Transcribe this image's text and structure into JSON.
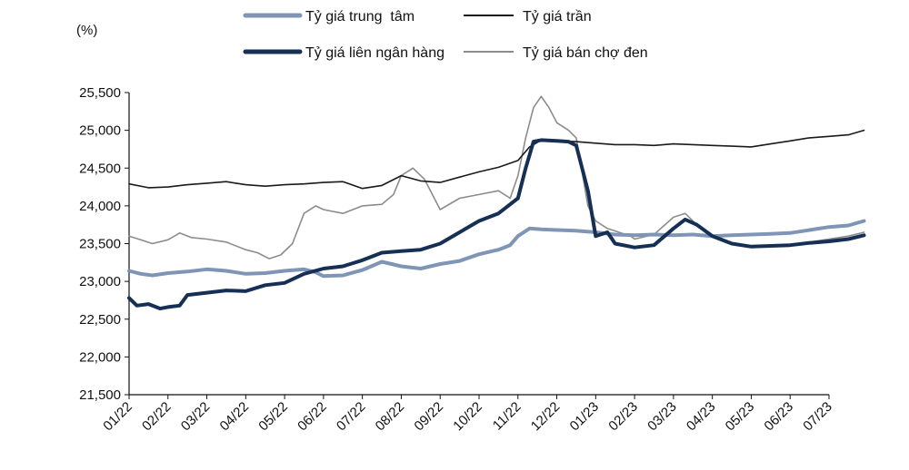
{
  "chart_data": {
    "type": "line",
    "y_unit": "(%)",
    "ylim": [
      21500,
      25500
    ],
    "y_ticks": [
      "21,500",
      "22,000",
      "22,500",
      "23,000",
      "23,500",
      "24,000",
      "24,500",
      "25,000",
      "25,500"
    ],
    "x_labels": [
      "01/22",
      "02/22",
      "03/22",
      "04/22",
      "05/22",
      "06/22",
      "07/22",
      "08/22",
      "09/22",
      "10/22",
      "11/22",
      "12/22",
      "01/23",
      "02/23",
      "03/23",
      "04/23",
      "05/23",
      "06/23",
      "07/23"
    ],
    "grid": false,
    "legend_position": "top",
    "series": [
      {
        "name": "Tỷ giá trung  tâm",
        "color": "#7f95b5",
        "x": [
          0,
          0.3,
          0.6,
          1,
          1.5,
          2,
          2.5,
          3,
          3.5,
          4,
          4.5,
          4.8,
          5,
          5.5,
          6,
          6.5,
          7,
          7.5,
          8,
          8.5,
          9,
          9.5,
          9.8,
          10,
          10.3,
          10.6,
          11,
          11.5,
          12,
          12.5,
          13,
          13.5,
          14,
          14.5,
          15,
          15.5,
          16,
          16.5,
          17,
          17.5,
          18,
          18.5,
          18.9
        ],
        "values": [
          23140,
          23100,
          23080,
          23110,
          23130,
          23160,
          23140,
          23100,
          23110,
          23140,
          23160,
          23120,
          23070,
          23080,
          23150,
          23260,
          23200,
          23170,
          23230,
          23270,
          23360,
          23420,
          23480,
          23600,
          23700,
          23690,
          23680,
          23670,
          23650,
          23620,
          23610,
          23620,
          23610,
          23620,
          23600,
          23610,
          23620,
          23630,
          23640,
          23680,
          23720,
          23740,
          23800
        ]
      },
      {
        "name": "Tỷ giá trần",
        "color": "#1a1a1a",
        "x": [
          0,
          0.5,
          1,
          1.5,
          2,
          2.5,
          3,
          3.5,
          4,
          4.5,
          5,
          5.5,
          6,
          6.5,
          7,
          7.5,
          8,
          8.5,
          9,
          9.5,
          10,
          10.3,
          10.6,
          11,
          11.5,
          12,
          12.5,
          13,
          13.5,
          14,
          14.5,
          15,
          15.5,
          16,
          16.5,
          17,
          17.5,
          18,
          18.5,
          18.9
        ],
        "values": [
          24290,
          24240,
          24250,
          24280,
          24300,
          24320,
          24280,
          24260,
          24280,
          24290,
          24310,
          24320,
          24230,
          24270,
          24400,
          24330,
          24310,
          24380,
          24450,
          24510,
          24600,
          24780,
          24870,
          24860,
          24850,
          24830,
          24810,
          24810,
          24800,
          24820,
          24810,
          24800,
          24790,
          24780,
          24820,
          24860,
          24900,
          24920,
          24940,
          25000
        ]
      },
      {
        "name": "Tỷ giá liên ngân hàng",
        "color": "#152f55",
        "x": [
          0,
          0.2,
          0.5,
          0.8,
          1,
          1.3,
          1.5,
          2,
          2.5,
          3,
          3.5,
          4,
          4.5,
          5,
          5.5,
          6,
          6.5,
          7,
          7.5,
          8,
          8.5,
          9,
          9.5,
          10,
          10.2,
          10.4,
          10.6,
          11,
          11.3,
          11.5,
          11.8,
          12,
          12.3,
          12.5,
          13,
          13.5,
          14,
          14.3,
          14.6,
          15,
          15.5,
          16,
          16.5,
          17,
          17.5,
          18,
          18.5,
          18.9
        ],
        "values": [
          22780,
          22680,
          22700,
          22640,
          22660,
          22680,
          22820,
          22850,
          22880,
          22870,
          22950,
          22980,
          23100,
          23170,
          23200,
          23280,
          23380,
          23400,
          23420,
          23500,
          23650,
          23800,
          23900,
          24100,
          24500,
          24850,
          24870,
          24860,
          24850,
          24800,
          24200,
          23600,
          23650,
          23500,
          23450,
          23480,
          23700,
          23820,
          23750,
          23600,
          23500,
          23460,
          23470,
          23480,
          23510,
          23530,
          23560,
          23610
        ]
      },
      {
        "name": "Tỷ giá bán chợ đen",
        "color": "#8c8c8c",
        "x": [
          0,
          0.3,
          0.6,
          1,
          1.3,
          1.6,
          2,
          2.5,
          3,
          3.3,
          3.6,
          3.9,
          4.2,
          4.5,
          4.8,
          5,
          5.5,
          6,
          6.5,
          6.8,
          7,
          7.3,
          7.6,
          8,
          8.5,
          9,
          9.5,
          9.8,
          10,
          10.2,
          10.4,
          10.6,
          10.8,
          11,
          11.3,
          11.5,
          11.8,
          12,
          12.3,
          12.6,
          12.9,
          13,
          13.5,
          14,
          14.3,
          14.6,
          15,
          15.5,
          16,
          16.5,
          17,
          17.5,
          18,
          18.5,
          18.9
        ],
        "values": [
          23600,
          23550,
          23500,
          23550,
          23640,
          23580,
          23560,
          23520,
          23420,
          23380,
          23300,
          23350,
          23500,
          23900,
          24000,
          23950,
          23900,
          24000,
          24020,
          24150,
          24400,
          24500,
          24350,
          23950,
          24100,
          24150,
          24200,
          24100,
          24400,
          24900,
          25300,
          25450,
          25300,
          25100,
          25000,
          24900,
          24000,
          23800,
          23700,
          23650,
          23600,
          23560,
          23620,
          23850,
          23900,
          23750,
          23600,
          23500,
          23450,
          23470,
          23480,
          23520,
          23560,
          23600,
          23650
        ]
      }
    ]
  }
}
